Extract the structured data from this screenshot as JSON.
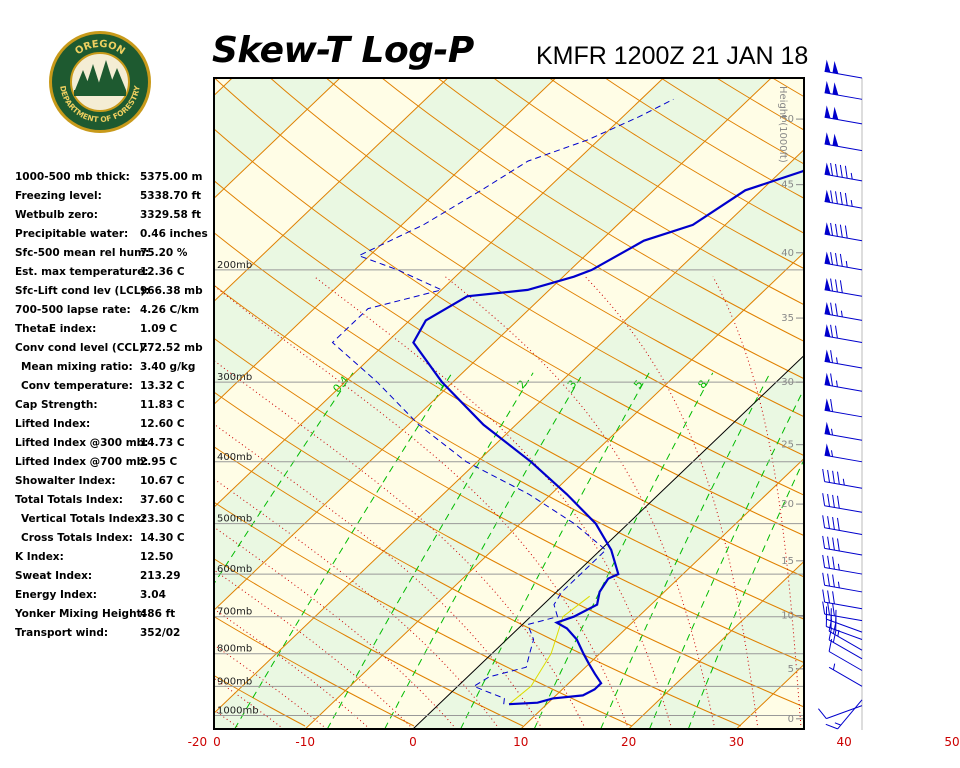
{
  "header": {
    "title": "Skew-T Log-P",
    "subtitle": "KMFR 1200Z 21 JAN 18"
  },
  "logo": {
    "top_text": "OREGON",
    "bottom_text": "DEPARTMENT OF FORESTRY"
  },
  "params": [
    {
      "label": "1000-500 mb thick:",
      "value": "5375.00 m"
    },
    {
      "label": "Freezing level:",
      "value": "5338.70 ft"
    },
    {
      "label": "Wetbulb zero:",
      "value": "3329.58 ft"
    },
    {
      "label": "Precipitable water:",
      "value": "0.46 inches"
    },
    {
      "label": "Sfc-500 mean rel hum:",
      "value": "75.20 %"
    },
    {
      "label": "Est. max temperature:",
      "value": "12.36 C"
    },
    {
      "label": "Sfc-Lift cond lev (LCL):",
      "value": "966.38 mb"
    },
    {
      "label": "700-500 lapse rate:",
      "value": "4.26 C/km"
    },
    {
      "label": "ThetaE index:",
      "value": "1.09 C"
    },
    {
      "label": "Conv cond level (CCL):",
      "value": "772.52 mb"
    },
    {
      "label": "Mean mixing ratio:",
      "value": "3.40 g/kg",
      "indent": true
    },
    {
      "label": "Conv temperature:",
      "value": "13.32 C",
      "indent": true
    },
    {
      "label": "Cap Strength:",
      "value": "11.83 C"
    },
    {
      "label": "Lifted Index:",
      "value": "12.60 C"
    },
    {
      "label": "Lifted Index @300 mb:",
      "value": "14.73 C"
    },
    {
      "label": "Lifted Index @700 mb:",
      "value": "2.95 C"
    },
    {
      "label": "Showalter Index:",
      "value": "10.67 C"
    },
    {
      "label": "Total Totals Index:",
      "value": "37.60 C"
    },
    {
      "label": "Vertical Totals Index:",
      "value": "23.30 C",
      "indent": true
    },
    {
      "label": "Cross Totals Index:",
      "value": "14.30 C",
      "indent": true
    },
    {
      "label": "K Index:",
      "value": "12.50"
    },
    {
      "label": "Sweat Index:",
      "value": "213.29"
    },
    {
      "label": "Energy Index:",
      "value": "3.04"
    },
    {
      "label": "Yonker Mixing Height:",
      "value": "486 ft"
    },
    {
      "label": "Transport wind:",
      "value": "352/02"
    }
  ],
  "colors": {
    "temperature": "#0000cc",
    "dewpoint": "#0000cc",
    "parcel": "#dddd00",
    "dry_adiabat": "#e08000",
    "moist_adiabat": "#cc0000",
    "isotherm": "#e08000",
    "mixing_ratio": "#00bb00",
    "isobar": "#999999",
    "zero_isotherm": "#000000",
    "band_light": "#fffde6",
    "band_dark": "#eaf8e2",
    "x_tick": "#cc0000",
    "wind_barb": "#0000cc"
  },
  "chart_data": {
    "type": "skew-t log-p",
    "xlim": [
      -30,
      55
    ],
    "ylim_mb": [
      1050,
      100
    ],
    "xlabel": "",
    "ylabel": "",
    "x_ticks": [
      "0",
      "-20",
      "-10",
      "0",
      "10",
      "20",
      "30",
      "40",
      "50"
    ],
    "isobars": [
      {
        "p": 200,
        "label": "200mb"
      },
      {
        "p": 300,
        "label": "300mb"
      },
      {
        "p": 400,
        "label": "400mb"
      },
      {
        "p": 500,
        "label": "500mb"
      },
      {
        "p": 600,
        "label": "600mb"
      },
      {
        "p": 700,
        "label": "700mb"
      },
      {
        "p": 800,
        "label": "800mb"
      },
      {
        "p": 900,
        "label": "900mb"
      },
      {
        "p": 1000,
        "label": "1000mb"
      }
    ],
    "height_axis": {
      "label": "Height (1000ft)",
      "ticks": [
        {
          "label": "0",
          "p": 1012
        },
        {
          "label": "5",
          "p": 845
        },
        {
          "label": "10",
          "p": 697
        },
        {
          "label": "15",
          "p": 572
        },
        {
          "label": "20",
          "p": 466
        },
        {
          "label": "25",
          "p": 376
        },
        {
          "label": "30",
          "p": 300
        },
        {
          "label": "35",
          "p": 238
        },
        {
          "label": "40",
          "p": 188
        },
        {
          "label": "45",
          "p": 147
        },
        {
          "label": "50",
          "p": 116
        }
      ]
    },
    "mixing_ratio_labels": [
      "0.4",
      "1",
      "2",
      "3",
      "5",
      "8"
    ],
    "series": [
      {
        "type": "line",
        "values": [
          {
            "p": 960,
            "t": 6.5
          },
          {
            "p": 955,
            "t": 9.0
          },
          {
            "p": 940,
            "t": 10.0
          },
          {
            "p": 930,
            "t": 12.5
          },
          {
            "p": 910,
            "t": 13.0
          },
          {
            "p": 890,
            "t": 13.0
          },
          {
            "p": 860,
            "t": 11.5
          },
          {
            "p": 830,
            "t": 10.0
          },
          {
            "p": 800,
            "t": 8.5
          },
          {
            "p": 760,
            "t": 6.5
          },
          {
            "p": 730,
            "t": 4.5
          },
          {
            "p": 715,
            "t": 3.0
          },
          {
            "p": 700,
            "t": 4.0
          },
          {
            "p": 670,
            "t": 5.0
          },
          {
            "p": 640,
            "t": 4.0
          },
          {
            "p": 610,
            "t": 3.5
          },
          {
            "p": 600,
            "t": 4.0
          },
          {
            "p": 550,
            "t": 1.0
          },
          {
            "p": 500,
            "t": -3.0
          },
          {
            "p": 450,
            "t": -8.5
          },
          {
            "p": 400,
            "t": -15.0
          },
          {
            "p": 350,
            "t": -23.0
          },
          {
            "p": 300,
            "t": -31.0
          },
          {
            "p": 260,
            "t": -37.5
          },
          {
            "p": 240,
            "t": -38.5
          },
          {
            "p": 220,
            "t": -37.0
          },
          {
            "p": 215,
            "t": -32.0
          },
          {
            "p": 205,
            "t": -29.0
          },
          {
            "p": 200,
            "t": -28.0
          },
          {
            "p": 180,
            "t": -26.0
          },
          {
            "p": 170,
            "t": -23.0
          },
          {
            "p": 150,
            "t": -21.5
          },
          {
            "p": 140,
            "t": -18.0
          },
          {
            "p": 130,
            "t": -18.0
          },
          {
            "p": 123,
            "t": -14.0
          },
          {
            "p": 121,
            "t": -11.0
          },
          {
            "p": 110,
            "t": -6.0
          },
          {
            "p": 100,
            "t": -1.0
          }
        ]
      },
      {
        "type": "dashed-line",
        "values": [
          {
            "p": 960,
            "t": 6.0
          },
          {
            "p": 940,
            "t": 5.5
          },
          {
            "p": 915,
            "t": 3.0
          },
          {
            "p": 900,
            "t": 1.5
          },
          {
            "p": 870,
            "t": 2.0
          },
          {
            "p": 840,
            "t": 4.5
          },
          {
            "p": 800,
            "t": 3.5
          },
          {
            "p": 760,
            "t": 2.5
          },
          {
            "p": 720,
            "t": 0.5
          },
          {
            "p": 700,
            "t": 2.5
          },
          {
            "p": 670,
            "t": 1.0
          },
          {
            "p": 640,
            "t": 0.5
          },
          {
            "p": 600,
            "t": 0.5
          },
          {
            "p": 550,
            "t": 0.5
          },
          {
            "p": 500,
            "t": -5.0
          },
          {
            "p": 450,
            "t": -12.0
          },
          {
            "p": 400,
            "t": -21.0
          },
          {
            "p": 350,
            "t": -29.0
          },
          {
            "p": 300,
            "t": -37.0
          },
          {
            "p": 260,
            "t": -45.0
          },
          {
            "p": 230,
            "t": -45.0
          },
          {
            "p": 215,
            "t": -40.0
          },
          {
            "p": 200,
            "t": -46.0
          },
          {
            "p": 190,
            "t": -51.0
          },
          {
            "p": 170,
            "t": -48.0
          },
          {
            "p": 150,
            "t": -46.0
          },
          {
            "p": 135,
            "t": -44.5
          },
          {
            "p": 125,
            "t": -41.0
          },
          {
            "p": 115,
            "t": -38.5
          },
          {
            "p": 108,
            "t": -37.0
          }
        ]
      },
      {
        "type": "parcel",
        "values": [
          {
            "p": 960,
            "t": 6.5
          },
          {
            "p": 900,
            "t": 6.8
          },
          {
            "p": 800,
            "t": 5.5
          },
          {
            "p": 700,
            "t": 3.0
          },
          {
            "p": 650,
            "t": 3.5
          }
        ]
      }
    ],
    "wind_barbs": [
      {
        "p": 965,
        "dir": 250,
        "speed": 10
      },
      {
        "p": 945,
        "dir": 220,
        "speed": 15
      },
      {
        "p": 900,
        "dir": 300,
        "speed": 5
      },
      {
        "p": 850,
        "dir": 300,
        "speed": 10
      },
      {
        "p": 815,
        "dir": 300,
        "speed": 20
      },
      {
        "p": 790,
        "dir": 300,
        "speed": 25
      },
      {
        "p": 760,
        "dir": 290,
        "speed": 30
      },
      {
        "p": 740,
        "dir": 290,
        "speed": 30
      },
      {
        "p": 710,
        "dir": 280,
        "speed": 30
      },
      {
        "p": 680,
        "dir": 280,
        "speed": 30
      },
      {
        "p": 640,
        "dir": 280,
        "speed": 35
      },
      {
        "p": 600,
        "dir": 280,
        "speed": 35
      },
      {
        "p": 560,
        "dir": 280,
        "speed": 40
      },
      {
        "p": 520,
        "dir": 280,
        "speed": 40
      },
      {
        "p": 480,
        "dir": 280,
        "speed": 40
      },
      {
        "p": 440,
        "dir": 280,
        "speed": 45
      },
      {
        "p": 400,
        "dir": 280,
        "speed": 55
      },
      {
        "p": 370,
        "dir": 280,
        "speed": 55
      },
      {
        "p": 340,
        "dir": 280,
        "speed": 60
      },
      {
        "p": 310,
        "dir": 280,
        "speed": 65
      },
      {
        "p": 285,
        "dir": 280,
        "speed": 65
      },
      {
        "p": 260,
        "dir": 280,
        "speed": 70
      },
      {
        "p": 240,
        "dir": 280,
        "speed": 75
      },
      {
        "p": 220,
        "dir": 280,
        "speed": 80
      },
      {
        "p": 200,
        "dir": 280,
        "speed": 85
      },
      {
        "p": 180,
        "dir": 280,
        "speed": 90
      },
      {
        "p": 160,
        "dir": 280,
        "speed": 95
      },
      {
        "p": 145,
        "dir": 280,
        "speed": 95
      },
      {
        "p": 130,
        "dir": 280,
        "speed": 100
      },
      {
        "p": 118,
        "dir": 280,
        "speed": 100
      },
      {
        "p": 108,
        "dir": 280,
        "speed": 100
      },
      {
        "p": 100,
        "dir": 280,
        "speed": 100
      }
    ]
  }
}
